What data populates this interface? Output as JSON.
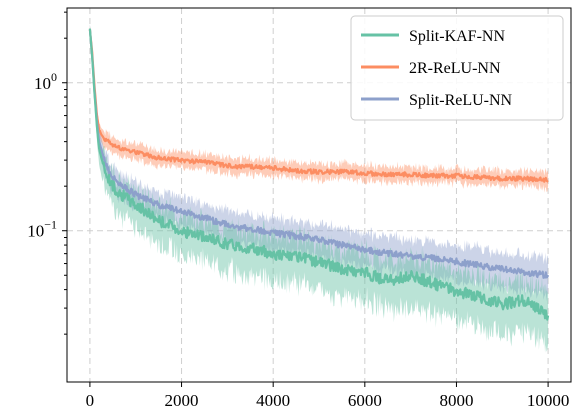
{
  "chart_data": {
    "type": "line",
    "title": "",
    "xlabel": "",
    "ylabel": "",
    "xlim": [
      -500,
      10500
    ],
    "ylim": [
      0.0095,
      3.2
    ],
    "yscale": "log",
    "grid": true,
    "legend_position": "top-right",
    "x_ticks": [
      0,
      2000,
      4000,
      6000,
      8000,
      10000
    ],
    "x_tick_labels": [
      "0",
      "2000",
      "4000",
      "6000",
      "8000",
      "10000"
    ],
    "y_ticks": [
      1,
      0.1
    ],
    "y_tick_labels": [
      {
        "base": "10",
        "exp": "0"
      },
      {
        "base": "10",
        "exp": "−1"
      }
    ],
    "series": [
      {
        "name": "Split-KAF-NN",
        "color": "#66c2a5",
        "x": [
          0,
          50,
          100,
          150,
          200,
          300,
          400,
          500,
          700,
          1000,
          1500,
          2000,
          2500,
          3000,
          3500,
          4000,
          4500,
          5000,
          5500,
          6000,
          6500,
          7000,
          7500,
          8000,
          8500,
          9000,
          9500,
          10000
        ],
        "mean": [
          2.3,
          1.5,
          0.85,
          0.52,
          0.36,
          0.27,
          0.23,
          0.2,
          0.175,
          0.15,
          0.118,
          0.1,
          0.09,
          0.082,
          0.076,
          0.07,
          0.066,
          0.062,
          0.055,
          0.052,
          0.046,
          0.05,
          0.044,
          0.039,
          0.036,
          0.032,
          0.034,
          0.026
        ],
        "band_low": [
          2.1,
          1.3,
          0.7,
          0.42,
          0.28,
          0.2,
          0.17,
          0.145,
          0.125,
          0.105,
          0.082,
          0.07,
          0.061,
          0.055,
          0.05,
          0.046,
          0.043,
          0.04,
          0.036,
          0.034,
          0.03,
          0.031,
          0.028,
          0.025,
          0.022,
          0.02,
          0.021,
          0.017
        ],
        "band_high": [
          2.5,
          1.7,
          1.0,
          0.62,
          0.44,
          0.33,
          0.28,
          0.245,
          0.215,
          0.185,
          0.15,
          0.13,
          0.117,
          0.107,
          0.1,
          0.093,
          0.088,
          0.083,
          0.075,
          0.071,
          0.063,
          0.068,
          0.06,
          0.053,
          0.05,
          0.045,
          0.047,
          0.037
        ]
      },
      {
        "name": "2R-ReLU-NN",
        "color": "#fc8d62",
        "x": [
          0,
          50,
          100,
          150,
          200,
          300,
          400,
          500,
          700,
          1000,
          1500,
          2000,
          2500,
          3000,
          3500,
          4000,
          4500,
          5000,
          5500,
          6000,
          6500,
          7000,
          7500,
          8000,
          8500,
          9000,
          9500,
          10000
        ],
        "mean": [
          2.3,
          1.6,
          0.95,
          0.62,
          0.48,
          0.42,
          0.4,
          0.38,
          0.36,
          0.34,
          0.31,
          0.3,
          0.29,
          0.275,
          0.27,
          0.265,
          0.255,
          0.25,
          0.25,
          0.245,
          0.24,
          0.24,
          0.235,
          0.235,
          0.23,
          0.225,
          0.225,
          0.22
        ],
        "band_low": [
          2.15,
          1.45,
          0.86,
          0.56,
          0.43,
          0.37,
          0.35,
          0.335,
          0.315,
          0.3,
          0.275,
          0.265,
          0.255,
          0.243,
          0.24,
          0.235,
          0.227,
          0.222,
          0.222,
          0.218,
          0.213,
          0.213,
          0.21,
          0.21,
          0.205,
          0.2,
          0.2,
          0.195
        ],
        "band_high": [
          2.45,
          1.75,
          1.05,
          0.69,
          0.53,
          0.47,
          0.45,
          0.43,
          0.405,
          0.385,
          0.35,
          0.34,
          0.328,
          0.31,
          0.305,
          0.3,
          0.288,
          0.282,
          0.282,
          0.277,
          0.272,
          0.272,
          0.265,
          0.265,
          0.26,
          0.255,
          0.255,
          0.25
        ]
      },
      {
        "name": "Split-ReLU-NN",
        "color": "#8da0cb",
        "x": [
          0,
          50,
          100,
          150,
          200,
          300,
          400,
          500,
          700,
          1000,
          1500,
          2000,
          2500,
          3000,
          3500,
          4000,
          4500,
          5000,
          5500,
          6000,
          6500,
          7000,
          7500,
          8000,
          8500,
          9000,
          9500,
          10000
        ],
        "mean": [
          2.3,
          1.5,
          0.88,
          0.56,
          0.4,
          0.31,
          0.26,
          0.23,
          0.2,
          0.175,
          0.15,
          0.135,
          0.122,
          0.11,
          0.103,
          0.097,
          0.092,
          0.087,
          0.08,
          0.075,
          0.07,
          0.068,
          0.065,
          0.062,
          0.058,
          0.055,
          0.052,
          0.05
        ],
        "band_low": [
          2.1,
          1.35,
          0.76,
          0.47,
          0.33,
          0.255,
          0.21,
          0.185,
          0.16,
          0.14,
          0.118,
          0.105,
          0.094,
          0.085,
          0.079,
          0.074,
          0.07,
          0.066,
          0.06,
          0.057,
          0.053,
          0.051,
          0.049,
          0.046,
          0.043,
          0.041,
          0.039,
          0.037
        ],
        "band_high": [
          2.5,
          1.7,
          1.02,
          0.66,
          0.48,
          0.37,
          0.31,
          0.275,
          0.24,
          0.21,
          0.185,
          0.168,
          0.153,
          0.138,
          0.13,
          0.122,
          0.116,
          0.11,
          0.102,
          0.096,
          0.09,
          0.087,
          0.084,
          0.08,
          0.075,
          0.071,
          0.068,
          0.065
        ]
      }
    ]
  }
}
